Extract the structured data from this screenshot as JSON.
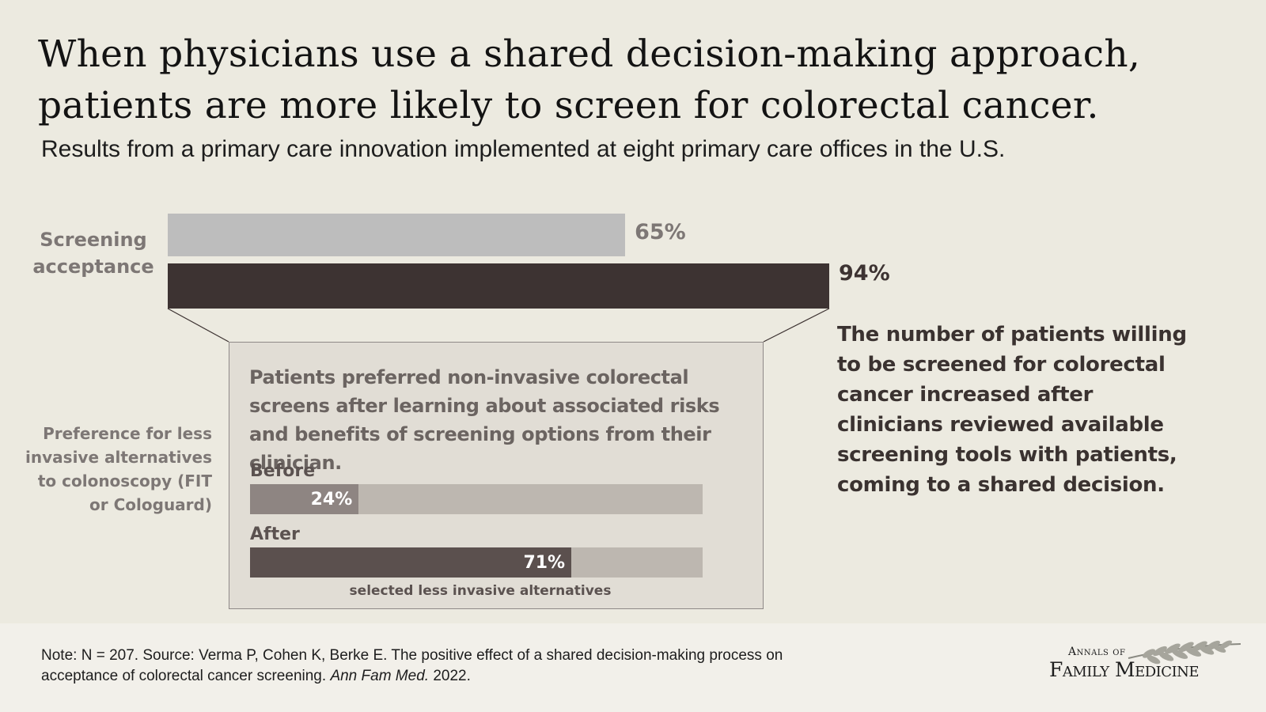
{
  "title": "When physicians use a shared decision-making approach, patients are more likely to screen for colorectal cancer.",
  "subtitle": "Results from a primary care innovation implemented at eight primary care offices in the U.S.",
  "chart_data": [
    {
      "type": "bar",
      "orientation": "horizontal",
      "category_label": "Screening acceptance",
      "values": [
        65,
        94
      ],
      "value_labels": [
        "65%",
        "94%"
      ],
      "colors": [
        "#bdbdbd",
        "#3d3332"
      ],
      "xlim": [
        0,
        100
      ]
    },
    {
      "type": "bar",
      "orientation": "horizontal",
      "category_label": "Preference for less invasive alternatives to colonoscopy (FIT or Cologuard)",
      "description": "Patients preferred non-invasive colorectal screens after learning about associated risks and benefits of screening options from their clinician.",
      "categories": [
        "Before",
        "After"
      ],
      "values": [
        24,
        71
      ],
      "value_labels": [
        "24%",
        "71%"
      ],
      "colors": [
        "#8e8582",
        "#5b504e"
      ],
      "track_color": "#bdb7b0",
      "xlim": [
        0,
        100
      ],
      "annotation": "selected less invasive alternatives"
    }
  ],
  "side_text": "The number of patients willing to be screened for colorectal cancer increased after clinicians reviewed available screening tools with patients, coming to a shared decision.",
  "footer": {
    "note_text": "Note: N = 207. Source:  Verma P, Cohen K, Berke E. The positive effect of a shared decision-making process on acceptance of colorectal cancer screening.",
    "journal": "Ann Fam Med.",
    "year": "2022.",
    "logo_line1": "Annals of",
    "logo_line2": "Family Medicine"
  }
}
